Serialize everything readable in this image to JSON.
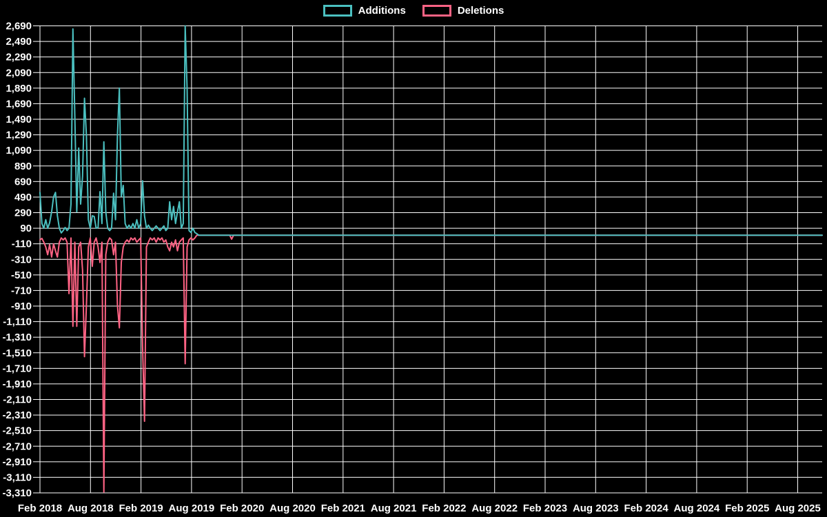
{
  "legend": {
    "additions_label": "Additions",
    "deletions_label": "Deletions"
  },
  "colors": {
    "additions": "#4bc0c0",
    "deletions": "#ff6384",
    "grid": "#ffffff",
    "background": "#000000",
    "text": "#ffffff"
  },
  "chart_data": {
    "type": "line",
    "title": "",
    "xlabel": "",
    "ylabel": "",
    "grid": true,
    "legend_position": "top",
    "x_unit": "week",
    "x_start": "Feb 2018",
    "x_end": "Aug 2025",
    "total_weeks": 405,
    "x_tick_labels": [
      "Feb 2018",
      "Aug 2018",
      "Feb 2019",
      "Aug 2019",
      "Feb 2020",
      "Aug 2020",
      "Feb 2021",
      "Aug 2021",
      "Feb 2022",
      "Aug 2022",
      "Feb 2023",
      "Aug 2023",
      "Feb 2024",
      "Aug 2024",
      "Feb 2025",
      "Aug 2025"
    ],
    "y_axis": {
      "max": 2690,
      "min": -3310,
      "step": 200
    },
    "note": "weekly additions/deletions; active_values cover weeks 0-105 (Feb 2018 - Feb 2020), all later weeks are 0",
    "series": [
      {
        "name": "Additions",
        "color": "#4bc0c0",
        "active_values": [
          550,
          150,
          90,
          200,
          90,
          160,
          300,
          490,
          550,
          250,
          90,
          30,
          60,
          100,
          60,
          90,
          400,
          2650,
          1520,
          300,
          1120,
          400,
          760,
          1760,
          1280,
          200,
          90,
          250,
          240,
          90,
          100,
          560,
          150,
          1200,
          300,
          90,
          60,
          90,
          540,
          200,
          1280,
          1890,
          500,
          640,
          150,
          90,
          130,
          90,
          150,
          90,
          200,
          90,
          150,
          700,
          250,
          90,
          130,
          90,
          60,
          90,
          120,
          90,
          60,
          90,
          120,
          60,
          90,
          430,
          200,
          370,
          150,
          300,
          430,
          90,
          150,
          2690,
          1880,
          60,
          35,
          90,
          35,
          20,
          0,
          0,
          0,
          0,
          0,
          0,
          0,
          0,
          0,
          0,
          0,
          0,
          0,
          0,
          0,
          0,
          0,
          0,
          0,
          0,
          0,
          0,
          0,
          0
        ]
      },
      {
        "name": "Deletions",
        "color": "#ff6384",
        "active_values": [
          -60,
          -40,
          -90,
          -150,
          -250,
          -120,
          -280,
          -110,
          -200,
          -280,
          -90,
          -35,
          -60,
          -35,
          -90,
          -750,
          -35,
          -1170,
          -90,
          -1170,
          -150,
          -90,
          -450,
          -1560,
          -900,
          -150,
          -35,
          -400,
          -90,
          -35,
          -150,
          -350,
          -90,
          -3300,
          -250,
          -90,
          -35,
          -60,
          -250,
          -90,
          -900,
          -1190,
          -350,
          -150,
          -90,
          -60,
          -90,
          -35,
          -60,
          -35,
          -90,
          -60,
          -35,
          -1430,
          -2390,
          -150,
          -90,
          -35,
          -60,
          -35,
          -90,
          -35,
          -60,
          -35,
          -90,
          -60,
          -150,
          -200,
          -90,
          -150,
          -60,
          -200,
          -90,
          -60,
          -35,
          -1650,
          -150,
          -60,
          -35,
          -60,
          -35,
          0,
          0,
          0,
          0,
          0,
          0,
          0,
          0,
          0,
          0,
          0,
          0,
          0,
          0,
          0,
          0,
          0,
          0,
          -50,
          0,
          0,
          0,
          0,
          0,
          0
        ]
      }
    ]
  }
}
